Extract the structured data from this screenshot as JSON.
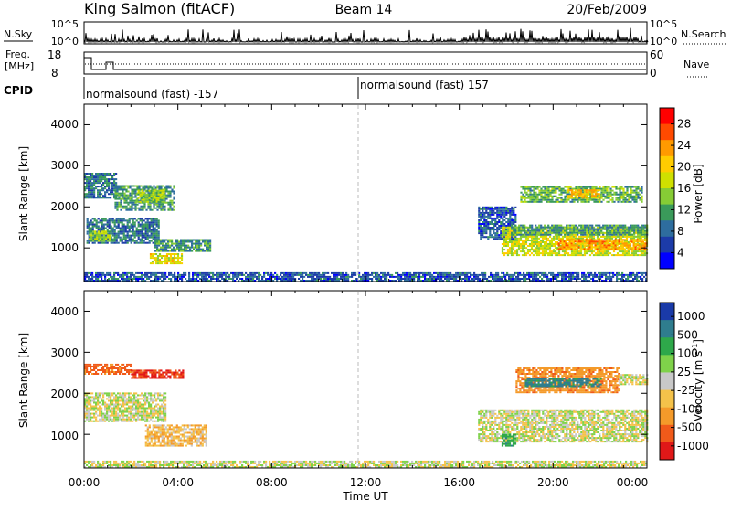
{
  "header": {
    "station": "King Salmon (fitACF)",
    "beam": "Beam 14",
    "date": "20/Feb/2009"
  },
  "noise_panel": {
    "left_label": "N.Sky",
    "right_label": "N.Search",
    "left_ticks": [
      "10^5",
      "10^0"
    ],
    "right_ticks": [
      "10^5",
      "10^0"
    ]
  },
  "freq_panel": {
    "left_label_line1": "Freq.",
    "left_label_line2": "[MHz]",
    "left_ticks": [
      "18",
      "8"
    ],
    "right_ticks": [
      "60",
      "0"
    ],
    "right_label": "Nave"
  },
  "cpid_panel": {
    "label": "CPID",
    "segments": [
      {
        "start_hour": 0,
        "end_hour": 12,
        "text": "normalsound (fast) -157"
      },
      {
        "start_hour": 12,
        "end_hour": 24,
        "text": "normalsound (fast) 157"
      }
    ]
  },
  "x_axis": {
    "ticks": [
      "00:00",
      "04:00",
      "08:00",
      "12:00",
      "16:00",
      "20:00",
      "00:00"
    ],
    "label": "Time UT"
  },
  "panels": {
    "power": {
      "ylabel": "Slant Range [km]",
      "yticks": [
        "4000",
        "3000",
        "2000",
        "1000"
      ],
      "colorbar_label": "Power [dB]",
      "colorbar_ticks": [
        "28",
        "24",
        "20",
        "16",
        "12",
        "8",
        "4"
      ],
      "colorbar_colors": [
        "#ff0000",
        "#ff4a00",
        "#ff9a00",
        "#ffcc00",
        "#cfe000",
        "#86cc35",
        "#3a9a5a",
        "#2e6d9e",
        "#1c3ba8",
        "#0000ff"
      ]
    },
    "velocity": {
      "ylabel": "Slant Range [km]",
      "yticks": [
        "4000",
        "3000",
        "2000",
        "1000"
      ],
      "colorbar_label": "Velocity [m s",
      "colorbar_label_sup": "-1",
      "colorbar_label_end": "]",
      "colorbar_ticks": [
        "1000",
        "500",
        "100",
        "25",
        "-25",
        "-100",
        "-500",
        "-1000"
      ],
      "colorbar_colors": [
        "#1a3aa8",
        "#2f7d8e",
        "#2ea84a",
        "#7fd24a",
        "#c8c8c8",
        "#f4c24a",
        "#f49a2a",
        "#f05a1a",
        "#e01818"
      ]
    }
  },
  "chart_data": {
    "type": "heatmap",
    "title": "King Salmon (fitACF) Beam 14 20/Feb/2009",
    "xlabel": "Time UT",
    "xlim": [
      0,
      24
    ],
    "ylim": [
      180,
      4500
    ],
    "series": [
      {
        "name": "Power [dB]",
        "zlim": [
          0,
          30
        ],
        "blobs": [
          {
            "t0": 0.0,
            "t1": 1.4,
            "r0": 2200,
            "r1": 2800,
            "z": 8
          },
          {
            "t0": 1.3,
            "t1": 3.8,
            "r0": 1900,
            "r1": 2500,
            "z": 10
          },
          {
            "t0": 2.2,
            "t1": 3.4,
            "r0": 2100,
            "r1": 2400,
            "z": 14
          },
          {
            "t0": 0.1,
            "t1": 3.2,
            "r0": 1100,
            "r1": 1700,
            "z": 8
          },
          {
            "t0": 0.2,
            "t1": 1.1,
            "r0": 1150,
            "r1": 1400,
            "z": 14
          },
          {
            "t0": 3.0,
            "t1": 5.4,
            "r0": 900,
            "r1": 1200,
            "z": 10
          },
          {
            "t0": 2.8,
            "t1": 4.2,
            "r0": 600,
            "r1": 850,
            "z": 18
          },
          {
            "t0": 16.8,
            "t1": 18.4,
            "r0": 1200,
            "r1": 2000,
            "z": 6
          },
          {
            "t0": 17.8,
            "t1": 24.0,
            "r0": 800,
            "r1": 1500,
            "z": 16
          },
          {
            "t0": 20.2,
            "t1": 24.0,
            "r0": 950,
            "r1": 1200,
            "z": 22
          },
          {
            "t0": 18.2,
            "t1": 24.0,
            "r0": 1300,
            "r1": 1550,
            "z": 10
          },
          {
            "t0": 18.6,
            "t1": 23.8,
            "r0": 2100,
            "r1": 2500,
            "z": 12
          },
          {
            "t0": 20.6,
            "t1": 22.0,
            "r0": 2200,
            "r1": 2400,
            "z": 20
          },
          {
            "t0": 0.0,
            "t1": 24.0,
            "r0": 180,
            "r1": 400,
            "z": 6
          }
        ]
      },
      {
        "name": "Velocity [m s^-1]",
        "zlim": [
          -1000,
          1000
        ],
        "blobs": [
          {
            "t0": 0.0,
            "t1": 2.0,
            "r0": 2450,
            "r1": 2700,
            "v": -300
          },
          {
            "t0": 2.0,
            "t1": 4.2,
            "r0": 2350,
            "r1": 2550,
            "v": -500
          },
          {
            "t0": 0.0,
            "t1": 3.5,
            "r0": 1300,
            "r1": 2000,
            "v": 0
          },
          {
            "t0": 2.6,
            "t1": 5.2,
            "r0": 700,
            "r1": 1200,
            "v": -80
          },
          {
            "t0": 16.8,
            "t1": 24.0,
            "r0": 800,
            "r1": 1600,
            "v": 0
          },
          {
            "t0": 17.8,
            "t1": 18.4,
            "r0": 700,
            "r1": 1000,
            "v": 200
          },
          {
            "t0": 18.4,
            "t1": 22.8,
            "r0": 2000,
            "r1": 2600,
            "v": -200
          },
          {
            "t0": 18.8,
            "t1": 22.0,
            "r0": 2150,
            "r1": 2350,
            "v": 300
          },
          {
            "t0": 22.8,
            "t1": 24.0,
            "r0": 2200,
            "r1": 2450,
            "v": 0
          },
          {
            "t0": 0.0,
            "t1": 24.0,
            "r0": 180,
            "r1": 350,
            "v": 0
          }
        ]
      }
    ]
  }
}
